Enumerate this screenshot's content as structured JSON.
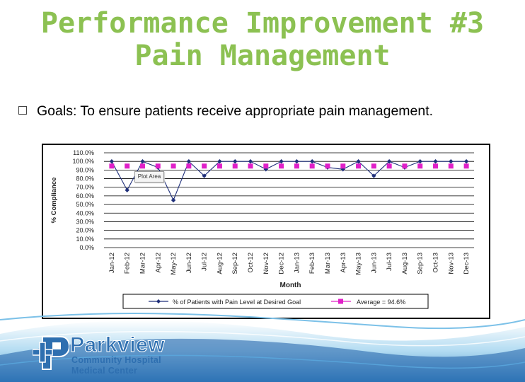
{
  "slide": {
    "title_line1": "Performance Improvement #3",
    "title_line2": "Pain Management",
    "bullet": "Goals: To ensure patients receive appropriate pain management."
  },
  "logo": {
    "name": "Parkview",
    "line2": "Community Hospital",
    "line3": "Medical Center"
  },
  "colors": {
    "title": "#8cc152",
    "series": "#1f2f7a",
    "average": "#e020c8",
    "brand": "#2e6fb0"
  },
  "chart_data": {
    "type": "line",
    "title": "",
    "xlabel": "Month",
    "ylabel": "% Compliance",
    "ylim": [
      0,
      110
    ],
    "yticks": [
      "0.0%",
      "10.0%",
      "20.0%",
      "30.0%",
      "40.0%",
      "50.0%",
      "60.0%",
      "70.0%",
      "80.0%",
      "90.0%",
      "100.0%",
      "110.0%"
    ],
    "categories": [
      "Jan-12",
      "Feb-12",
      "Mar-12",
      "Apr-12",
      "May-12",
      "Jun-12",
      "Jul-12",
      "Aug-12",
      "Sep-12",
      "Oct-12",
      "Nov-12",
      "Dec-12",
      "Jan-13",
      "Feb-13",
      "Mar-13",
      "Apr-13",
      "May-13",
      "Jun-13",
      "Jul-13",
      "Aug-13",
      "Sep-13",
      "Oct-13",
      "Nov-13",
      "Dec-13"
    ],
    "series": [
      {
        "name": "% of Patients with Pain Level at Desired Goal",
        "style": "line-diamond",
        "values": [
          100,
          66.7,
          100,
          93,
          55,
          100,
          83.3,
          100,
          100,
          100,
          90.9,
          100,
          100,
          100,
          93,
          90.9,
          100,
          83.3,
          100,
          93,
          100,
          100,
          100,
          100
        ]
      },
      {
        "name": "Average = 94.6%",
        "style": "square-markers",
        "values": [
          94.6,
          94.6,
          94.6,
          94.6,
          94.6,
          94.6,
          94.6,
          94.6,
          94.6,
          94.6,
          94.6,
          94.6,
          94.6,
          94.6,
          94.6,
          94.6,
          94.6,
          94.6,
          94.6,
          94.6,
          94.6,
          94.6,
          94.6,
          94.6
        ]
      }
    ],
    "grid": true,
    "legend_position": "bottom",
    "annotation": "Plot Area"
  }
}
